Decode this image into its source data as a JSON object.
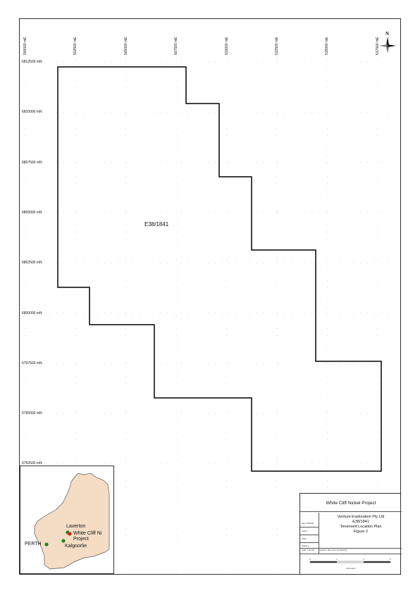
{
  "map": {
    "tenement_id": "E38/1841",
    "easting_ticks": [
      "500000 mE",
      "502500 mE",
      "505000 mE",
      "507500 mE",
      "510000 mE",
      "512500 mE",
      "515000 mE",
      "517500 mE"
    ],
    "northing_ticks": [
      "6812500 mN",
      "6810000 mN",
      "6807500 mN",
      "6805000 mN",
      "6802500 mN",
      "6800000 mN",
      "6797500 mN",
      "6795000 mN",
      "6792500 mN"
    ],
    "north_label": "N",
    "boundary_color": "#000000"
  },
  "inset": {
    "land_color": "#f5dcc5",
    "towns": [
      {
        "name": "Laverton"
      },
      {
        "name": "White Cliff Ni\nProject"
      },
      {
        "name": "Kalgoorlie"
      },
      {
        "name": "PERTH"
      }
    ],
    "town_color": "#1a8a1a",
    "project_color": "#e02020"
  },
  "title_block": {
    "title": "White Cliff Nickel Project",
    "company": "Venture Exploration Pty Ltd",
    "tenement": "E38/1841",
    "plan": "Tenement Location Plan",
    "figure": "Figure 2",
    "date_label": "Date 27/8/2007",
    "author_label": "Author:",
    "office_label": "Office:",
    "drawing_label": "Drawing:",
    "scale_label": "Scale: 1:25 000",
    "projection_label": "Projection: MGA Zone 51 (GDA 94)",
    "scale_ticks": [
      "0",
      "1",
      "2",
      "3"
    ],
    "scale_unit": "kilometres"
  }
}
